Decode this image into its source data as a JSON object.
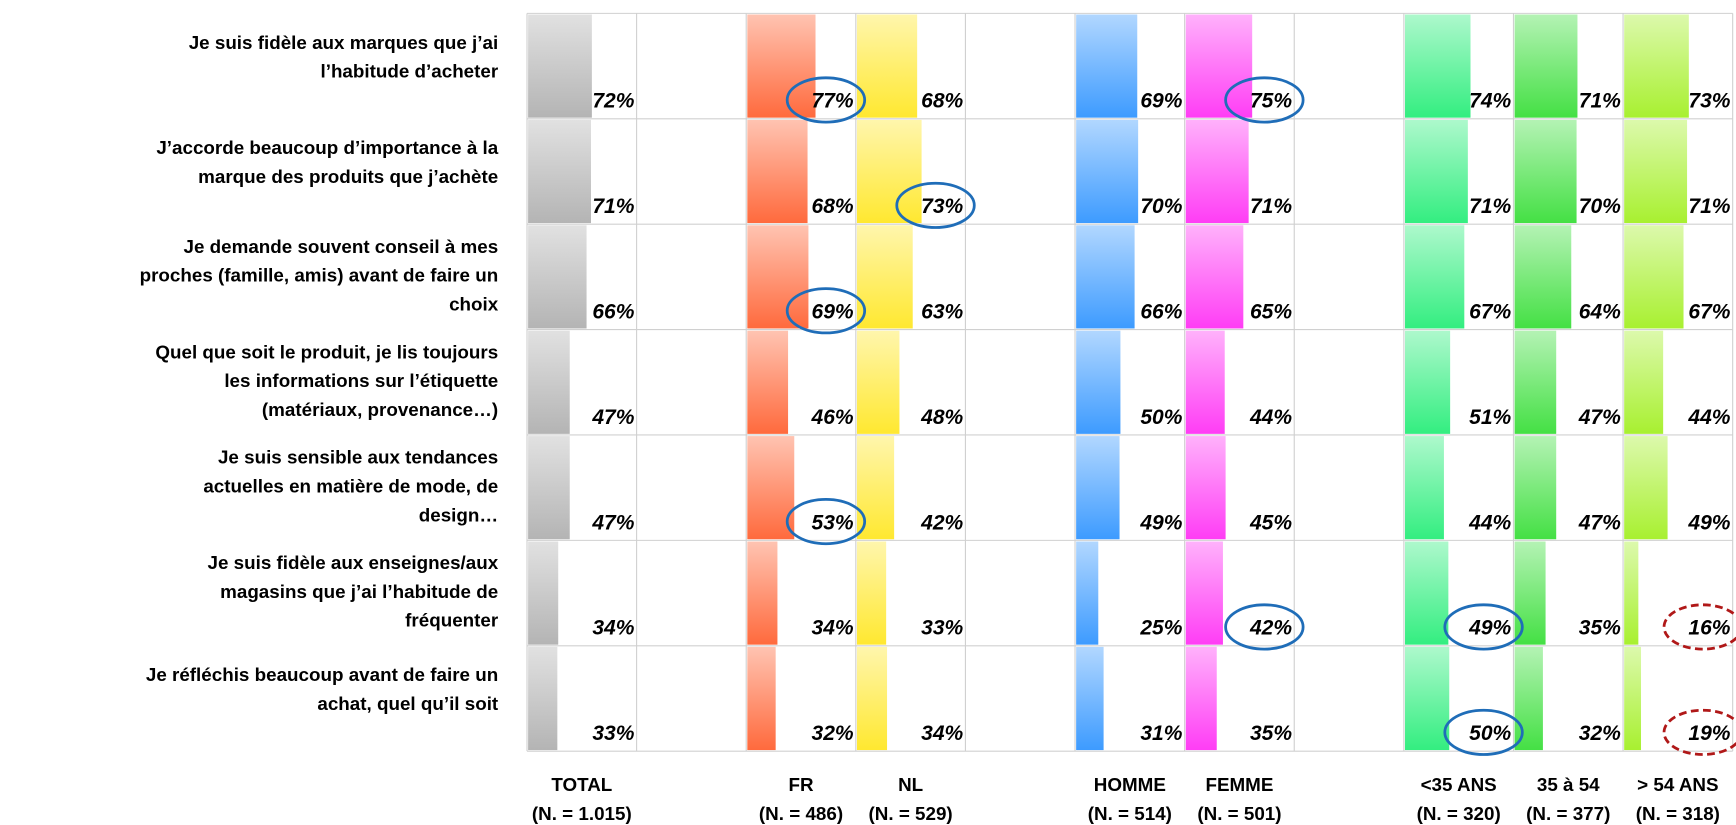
{
  "chart_data": {
    "type": "bar",
    "categories": [
      [
        "Je suis fidèle aux marques que j’ai",
        "l’habitude d’acheter"
      ],
      [
        "J’accorde beaucoup d’importance à la",
        "marque des produits que j’achète"
      ],
      [
        "Je demande souvent conseil à mes",
        "proches (famille, amis) avant de faire un",
        "choix"
      ],
      [
        "Quel que soit le produit, je lis toujours",
        "les informations sur l’étiquette",
        "(matériaux, provenance…)"
      ],
      [
        "Je suis sensible aux tendances",
        "actuelles en matière de mode, de",
        "design…"
      ],
      [
        "Je suis fidèle aux enseignes/aux",
        "magasins que j’ai l’habitude de",
        "fréquenter"
      ],
      [
        "Je réfléchis beaucoup avant de faire un",
        "achat, quel qu’il soit"
      ]
    ],
    "series": [
      {
        "name": "TOTAL",
        "sample": "(N. = 1.015)",
        "color": "#b4b4b4",
        "values": [
          72,
          71,
          66,
          47,
          47,
          34,
          33
        ],
        "value_labels": [
          "72%",
          "71%",
          "66%",
          "47%",
          "47%",
          "34%",
          "33%"
        ]
      },
      {
        "name": "FR",
        "sample": "(N. = 486)",
        "color": "#ff6a3d",
        "values": [
          77,
          68,
          69,
          46,
          53,
          34,
          32
        ],
        "value_labels": [
          "77%",
          "68%",
          "69%",
          "46%",
          "53%",
          "34%",
          "32%"
        ]
      },
      {
        "name": "NL",
        "sample": "(N. = 529)",
        "color": "#ffe830",
        "values": [
          68,
          73,
          63,
          48,
          42,
          33,
          34
        ],
        "value_labels": [
          "68%",
          "73%",
          "63%",
          "48%",
          "42%",
          "33%",
          "34%"
        ]
      },
      {
        "name": "HOMME",
        "sample": "(N. = 514)",
        "color": "#3d9bff",
        "values": [
          69,
          70,
          66,
          50,
          49,
          25,
          31
        ],
        "value_labels": [
          "69%",
          "70%",
          "66%",
          "50%",
          "49%",
          "25%",
          "31%"
        ]
      },
      {
        "name": "FEMME",
        "sample": "(N. = 501)",
        "color": "#ff3df5",
        "values": [
          75,
          71,
          65,
          44,
          45,
          42,
          35
        ],
        "value_labels": [
          "75%",
          "71%",
          "65%",
          "44%",
          "45%",
          "42%",
          "35%"
        ]
      },
      {
        "name": "<35 ANS",
        "sample": "(N. = 320)",
        "color": "#33ee80",
        "values": [
          74,
          71,
          67,
          51,
          44,
          49,
          50
        ],
        "value_labels": [
          "74%",
          "71%",
          "67%",
          "51%",
          "44%",
          "49%",
          "50%"
        ]
      },
      {
        "name": "35 à 54",
        "sample": "(N. = 377)",
        "color": "#44e044",
        "values": [
          71,
          70,
          64,
          47,
          47,
          35,
          32
        ],
        "value_labels": [
          "71%",
          "70%",
          "64%",
          "47%",
          "47%",
          "35%",
          "32%"
        ]
      },
      {
        "name": "> 54 ANS",
        "sample": "(N. = 318)",
        "color": "#a8f030",
        "values": [
          73,
          71,
          67,
          44,
          49,
          16,
          19
        ],
        "value_labels": [
          "73%",
          "71%",
          "67%",
          "44%",
          "49%",
          "16%",
          "19%"
        ]
      }
    ],
    "highlights": [
      {
        "series": 1,
        "category": 0,
        "color": "#1f6db8",
        "style": "solid"
      },
      {
        "series": 4,
        "category": 0,
        "color": "#1f6db8",
        "style": "solid"
      },
      {
        "series": 2,
        "category": 1,
        "color": "#1f6db8",
        "style": "solid"
      },
      {
        "series": 1,
        "category": 2,
        "color": "#1f6db8",
        "style": "solid"
      },
      {
        "series": 1,
        "category": 4,
        "color": "#1f6db8",
        "style": "solid"
      },
      {
        "series": 4,
        "category": 5,
        "color": "#1f6db8",
        "style": "solid"
      },
      {
        "series": 5,
        "category": 5,
        "color": "#1f6db8",
        "style": "solid"
      },
      {
        "series": 5,
        "category": 6,
        "color": "#1f6db8",
        "style": "solid"
      },
      {
        "series": 7,
        "category": 5,
        "color": "#b01818",
        "style": "dashed"
      },
      {
        "series": 7,
        "category": 6,
        "color": "#b01818",
        "style": "dashed"
      }
    ]
  }
}
